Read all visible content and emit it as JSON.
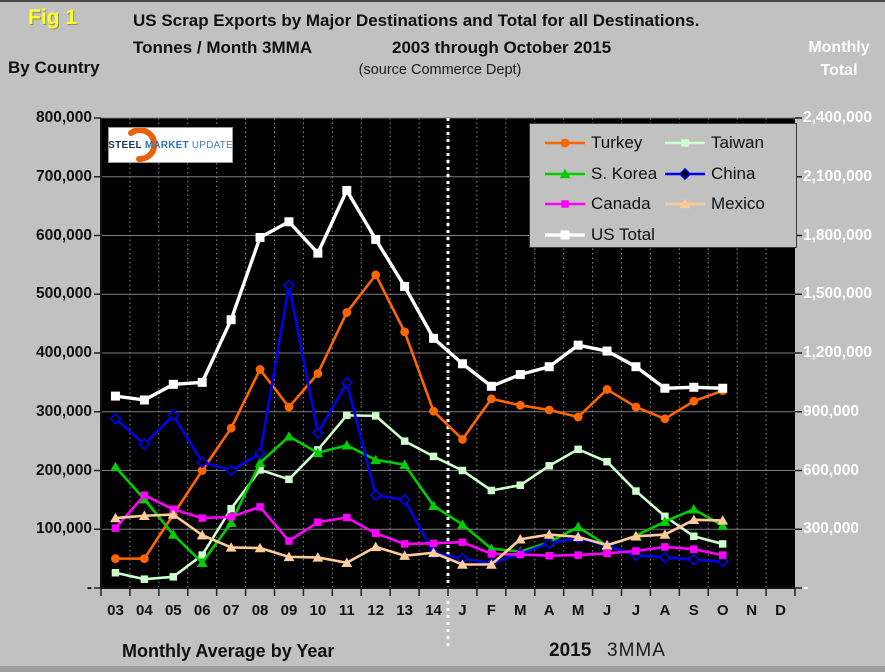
{
  "page": {
    "background": "#c1c1c1"
  },
  "fig_label": "Fig 1",
  "header": {
    "title_line1": "US Scrap Exports by Major Destinations and Total for all Destinations.",
    "title_line2_left": "Tonnes / Month 3MMA",
    "title_line2_right": "2003 through October 2015",
    "source_line": "(source Commerce Dept)",
    "by_country_label": "By Country",
    "monthly_total_line1": "Monthly",
    "monthly_total_line2": "Total"
  },
  "logo": {
    "word1": "STEEL",
    "word2": "MARKET",
    "word3": "UPDATE",
    "accent_color": "#e8610a"
  },
  "footer": {
    "years_caption": "Monthly Average by Year",
    "months_year": "2015",
    "months_caption": "3MMA"
  },
  "chart_data": {
    "type": "line",
    "title": "US Scrap Exports by Major Destinations and Total for all Destinations. Tonnes / Month 3MMA, 2003 through October 2015",
    "source": "(source Commerce Dept)",
    "plot_background": "#000000",
    "grid": {
      "horizontal": "solid",
      "vertical": "dotted",
      "color": "#808080"
    },
    "categories": [
      "03",
      "04",
      "05",
      "06",
      "07",
      "08",
      "09",
      "10",
      "11",
      "12",
      "13",
      "14",
      "J",
      "F",
      "M",
      "A",
      "M",
      "J",
      "J",
      "A",
      "S",
      "O",
      "N",
      "D"
    ],
    "separator_after_index": 11,
    "left_axis": {
      "min": 0,
      "max": 800000,
      "tick_labels": [
        "800,000",
        "700,000",
        "600,000",
        "500,000",
        "400,000",
        "300,000",
        "200,000",
        "100,000",
        "-"
      ]
    },
    "right_axis": {
      "min": 0,
      "max": 2400000,
      "tick_labels": [
        "2,400,000",
        "2,100,000",
        "1,800,000",
        "1,500,000",
        "1,200,000",
        "900,000",
        "600,000",
        "300,000",
        "-"
      ],
      "applies_to": "US Total"
    },
    "series": [
      {
        "name": "Turkey",
        "color": "#ff6600",
        "marker": "circle",
        "axis": "left",
        "values": [
          50000,
          50000,
          125000,
          200000,
          272000,
          372000,
          308000,
          365000,
          469000,
          533000,
          436000,
          301000,
          253000,
          322000,
          311000,
          303000,
          291000,
          338000,
          308000,
          288000,
          318000,
          336000,
          null,
          null
        ]
      },
      {
        "name": "Taiwan",
        "color": "#ccffcc",
        "marker": "square",
        "axis": "left",
        "values": [
          26000,
          15000,
          19000,
          56000,
          135000,
          201000,
          185000,
          235000,
          294000,
          293000,
          250000,
          224000,
          200000,
          166000,
          175000,
          208000,
          236000,
          215000,
          165000,
          122000,
          88000,
          75000,
          null,
          null
        ]
      },
      {
        "name": "S. Korea",
        "color": "#00cc00",
        "marker": "triangle",
        "axis": "left",
        "values": [
          206000,
          151000,
          91000,
          43000,
          111000,
          213000,
          258000,
          230000,
          243000,
          218000,
          210000,
          140000,
          108000,
          67000,
          62000,
          78000,
          104000,
          72000,
          89000,
          113000,
          134000,
          106000,
          null,
          null
        ]
      },
      {
        "name": "China",
        "color": "#0000ee",
        "marker": "diamond",
        "axis": "left",
        "values": [
          288000,
          245000,
          294000,
          214000,
          200000,
          229000,
          515000,
          264000,
          349000,
          158000,
          150000,
          60000,
          50000,
          42000,
          58000,
          76000,
          85000,
          72000,
          56000,
          52000,
          48000,
          45000,
          null,
          null
        ]
      },
      {
        "name": "Canada",
        "color": "#ff00ff",
        "marker": "square",
        "axis": "left",
        "values": [
          102000,
          158000,
          134000,
          119000,
          121000,
          138000,
          80000,
          112000,
          120000,
          93000,
          75000,
          76000,
          78000,
          58000,
          57000,
          55000,
          56000,
          59000,
          63000,
          70000,
          66000,
          56000,
          null,
          null
        ]
      },
      {
        "name": "Mexico",
        "color": "#ffcc99",
        "marker": "triangle",
        "axis": "left",
        "values": [
          119000,
          123000,
          125000,
          90000,
          69000,
          68000,
          53000,
          52000,
          43000,
          70000,
          55000,
          60000,
          40000,
          40000,
          83000,
          91000,
          87000,
          73000,
          88000,
          91000,
          116000,
          115000,
          null,
          null
        ]
      },
      {
        "name": "US Total",
        "color": "#ffffff",
        "marker": "square",
        "axis": "right",
        "values": [
          980000,
          960000,
          1040000,
          1050000,
          1370000,
          1790000,
          1870000,
          1710000,
          2030000,
          1780000,
          1540000,
          1275000,
          1145000,
          1030000,
          1090000,
          1130000,
          1240000,
          1210000,
          1130000,
          1020000,
          1025000,
          1020000,
          null,
          null
        ]
      }
    ],
    "legend": {
      "columns": [
        [
          "Turkey",
          "S. Korea",
          "Canada",
          "US Total"
        ],
        [
          "Taiwan",
          "China",
          "Mexico"
        ]
      ]
    }
  }
}
